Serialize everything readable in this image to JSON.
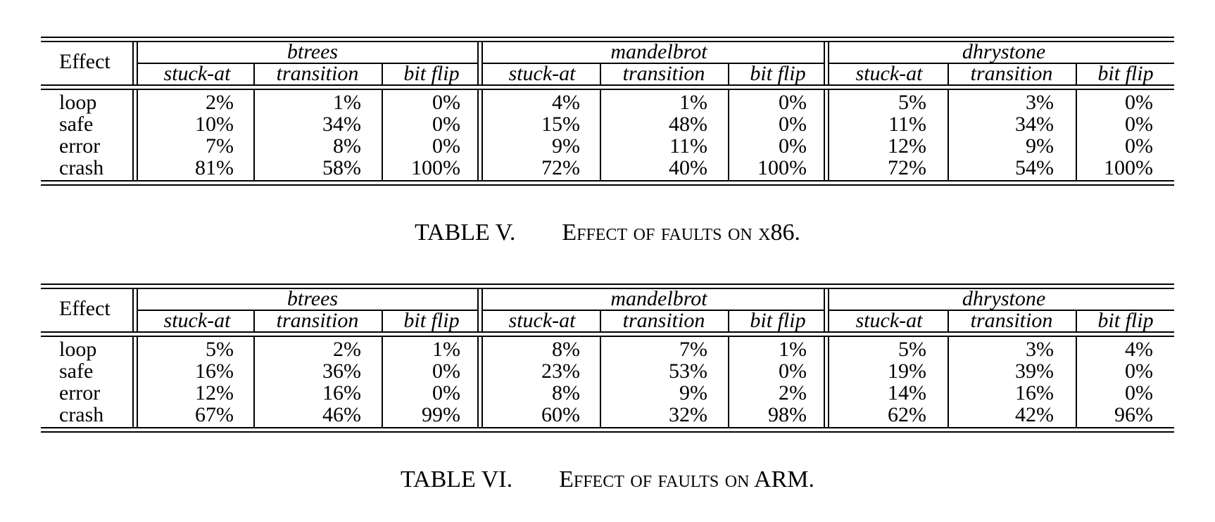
{
  "tables": [
    {
      "header": {
        "effect_label": "Effect",
        "benchmarks": [
          "btrees",
          "mandelbrot",
          "dhrystone"
        ],
        "fault_types": [
          "stuck-at",
          "transition",
          "bit flip"
        ]
      },
      "rows": [
        {
          "label": "loop",
          "values": [
            "2%",
            "1%",
            "0%",
            "4%",
            "1%",
            "0%",
            "5%",
            "3%",
            "0%"
          ]
        },
        {
          "label": "safe",
          "values": [
            "10%",
            "34%",
            "0%",
            "15%",
            "48%",
            "0%",
            "11%",
            "34%",
            "0%"
          ]
        },
        {
          "label": "error",
          "values": [
            "7%",
            "8%",
            "0%",
            "9%",
            "11%",
            "0%",
            "12%",
            "9%",
            "0%"
          ]
        },
        {
          "label": "crash",
          "values": [
            "81%",
            "58%",
            "100%",
            "72%",
            "40%",
            "100%",
            "72%",
            "54%",
            "100%"
          ]
        }
      ],
      "caption": {
        "number": "TABLE V.",
        "text": "Effect of faults on x86."
      }
    },
    {
      "header": {
        "effect_label": "Effect",
        "benchmarks": [
          "btrees",
          "mandelbrot",
          "dhrystone"
        ],
        "fault_types": [
          "stuck-at",
          "transition",
          "bit flip"
        ]
      },
      "rows": [
        {
          "label": "loop",
          "values": [
            "5%",
            "2%",
            "1%",
            "8%",
            "7%",
            "1%",
            "5%",
            "3%",
            "4%"
          ]
        },
        {
          "label": "safe",
          "values": [
            "16%",
            "36%",
            "0%",
            "23%",
            "53%",
            "0%",
            "19%",
            "39%",
            "0%"
          ]
        },
        {
          "label": "error",
          "values": [
            "12%",
            "16%",
            "0%",
            "8%",
            "9%",
            "2%",
            "14%",
            "16%",
            "0%"
          ]
        },
        {
          "label": "crash",
          "values": [
            "67%",
            "46%",
            "99%",
            "60%",
            "32%",
            "98%",
            "62%",
            "42%",
            "96%"
          ]
        }
      ],
      "caption": {
        "number": "TABLE VI.",
        "text": "Effect of faults on ARM."
      }
    }
  ]
}
